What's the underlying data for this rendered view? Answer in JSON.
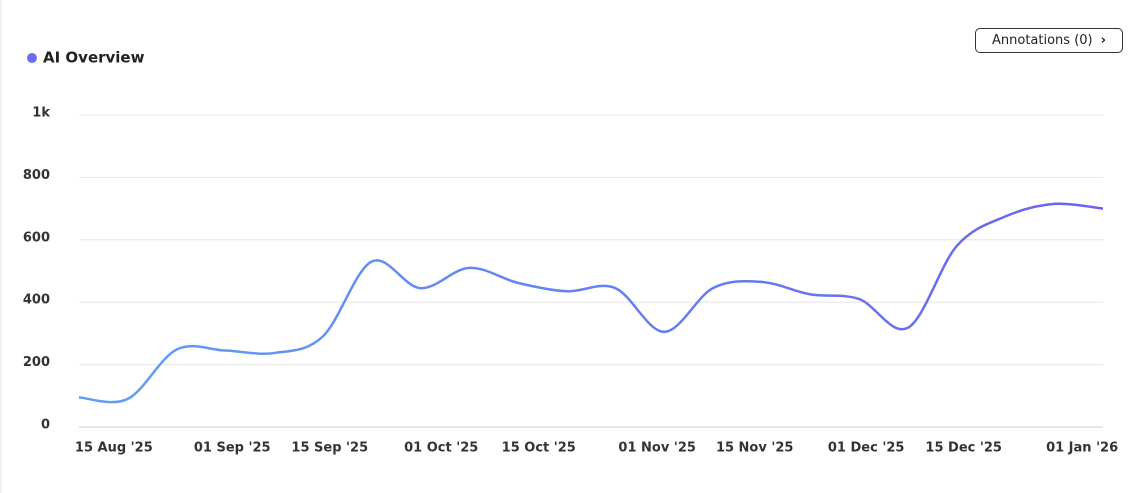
{
  "chart_data": {
    "type": "line",
    "annotations_button": "Annotations (0)",
    "x": [
      "2025-08-10",
      "2025-08-17",
      "2025-08-24",
      "2025-08-31",
      "2025-09-07",
      "2025-09-14",
      "2025-09-21",
      "2025-09-28",
      "2025-10-05",
      "2025-10-12",
      "2025-10-19",
      "2025-10-26",
      "2025-11-02",
      "2025-11-09",
      "2025-11-16",
      "2025-11-23",
      "2025-11-30",
      "2025-12-07",
      "2025-12-14",
      "2025-12-21",
      "2025-12-28",
      "2026-01-04"
    ],
    "series": [
      {
        "name": "AI Overview",
        "color": "#6b6cf0",
        "values": [
          95,
          90,
          248,
          245,
          237,
          290,
          530,
          445,
          510,
          462,
          435,
          445,
          305,
          445,
          465,
          425,
          410,
          318,
          580,
          675,
          715,
          700
        ]
      }
    ],
    "xlim": [
      "2025-08-10",
      "2026-01-04"
    ],
    "xticks": [
      {
        "value": "2025-08-15",
        "label": "15 Aug '25"
      },
      {
        "value": "2025-09-01",
        "label": "01 Sep '25"
      },
      {
        "value": "2025-09-15",
        "label": "15 Sep '25"
      },
      {
        "value": "2025-10-01",
        "label": "01 Oct '25"
      },
      {
        "value": "2025-10-15",
        "label": "15 Oct '25"
      },
      {
        "value": "2025-11-01",
        "label": "01 Nov '25"
      },
      {
        "value": "2025-11-15",
        "label": "15 Nov '25"
      },
      {
        "value": "2025-12-01",
        "label": "01 Dec '25"
      },
      {
        "value": "2025-12-15",
        "label": "15 Dec '25"
      },
      {
        "value": "2026-01-01",
        "label": "01 Jan '26"
      }
    ],
    "ylim": [
      0,
      1000
    ],
    "yticks": [
      0,
      200,
      400,
      600,
      800,
      {
        "value": 1000,
        "label": "1k"
      }
    ],
    "grid": true
  }
}
